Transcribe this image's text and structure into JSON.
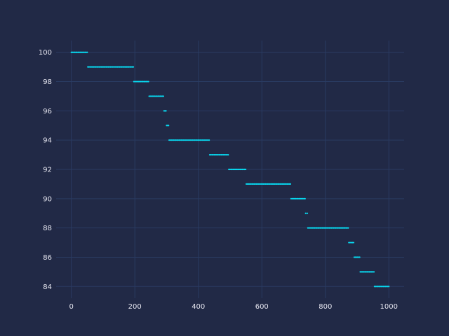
{
  "chart_data": {
    "type": "scatter",
    "title": "",
    "xlabel": "",
    "ylabel": "",
    "xlim": [
      -48,
      1048
    ],
    "ylim": [
      83.2,
      100.8
    ],
    "xticks": [
      0,
      200,
      400,
      600,
      800,
      1000
    ],
    "yticks": [
      84,
      86,
      88,
      90,
      92,
      94,
      96,
      98,
      100
    ],
    "grid": true,
    "colors": {
      "background": "#212946",
      "grid": "#2a3b62",
      "tick_text": "#e6e6f0",
      "series": "#08d9f0"
    },
    "segments": [
      {
        "y": 100,
        "x_start": 0,
        "x_end": 50
      },
      {
        "y": 99,
        "x_start": 52,
        "x_end": 195
      },
      {
        "y": 98,
        "x_start": 197,
        "x_end": 243
      },
      {
        "y": 97,
        "x_start": 245,
        "x_end": 290
      },
      {
        "y": 96,
        "x_start": 292,
        "x_end": 298
      },
      {
        "y": 95,
        "x_start": 300,
        "x_end": 306
      },
      {
        "y": 94,
        "x_start": 308,
        "x_end": 434
      },
      {
        "y": 93,
        "x_start": 436,
        "x_end": 494
      },
      {
        "y": 92,
        "x_start": 496,
        "x_end": 549
      },
      {
        "y": 91,
        "x_start": 551,
        "x_end": 690
      },
      {
        "y": 90,
        "x_start": 692,
        "x_end": 736
      },
      {
        "y": 89,
        "x_start": 738,
        "x_end": 743
      },
      {
        "y": 88,
        "x_start": 745,
        "x_end": 872
      },
      {
        "y": 87,
        "x_start": 874,
        "x_end": 889
      },
      {
        "y": 86,
        "x_start": 891,
        "x_end": 908
      },
      {
        "y": 85,
        "x_start": 910,
        "x_end": 953
      },
      {
        "y": 84,
        "x_start": 955,
        "x_end": 1000
      }
    ]
  }
}
